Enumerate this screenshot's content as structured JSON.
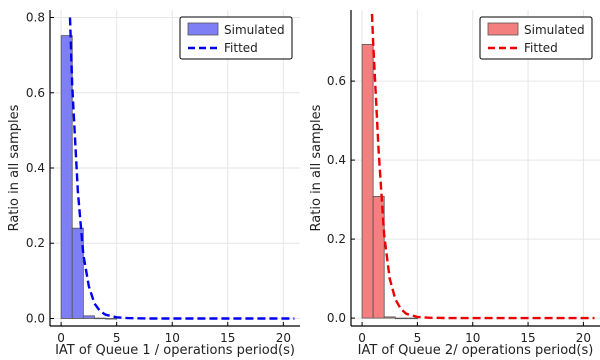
{
  "chart_data": [
    {
      "type": "bar",
      "xlabel": "IAT of Queue 1 / operations period(s)",
      "ylabel": "Ratio in all samples",
      "xlim": [
        -1,
        21.5
      ],
      "ylim": [
        -0.02,
        0.82
      ],
      "x_ticks": [
        0,
        5,
        10,
        15,
        20
      ],
      "y_ticks": [
        0.0,
        0.2,
        0.4,
        0.6,
        0.8
      ],
      "tick_labels_x": [
        "0",
        "5",
        "10",
        "15",
        "20"
      ],
      "tick_labels_y": [
        "0.0",
        "0.2",
        "0.4",
        "0.6",
        "0.8"
      ],
      "grid": true,
      "legend_position": "top-right",
      "bar_color": "#7f7ff5",
      "line_color": "#0000ee",
      "bars": [
        {
          "x0": 0,
          "x1": 1,
          "value": 0.752
        },
        {
          "x0": 1,
          "x1": 2,
          "value": 0.24
        },
        {
          "x0": 2,
          "x1": 3,
          "value": 0.007
        },
        {
          "x0": 3,
          "x1": 4,
          "value": 0.001
        },
        {
          "x0": 4,
          "x1": 5,
          "value": 0.0
        }
      ],
      "series": [
        {
          "name": "Simulated",
          "kind": "bar"
        },
        {
          "name": "Fitted",
          "kind": "line",
          "style": "dashed",
          "x": [
            0.8,
            1.0,
            1.5,
            2.0,
            2.5,
            3.0,
            3.5,
            4.0,
            5.0,
            6.0,
            8.0,
            10.0,
            15.0,
            21.0
          ],
          "y": [
            0.8,
            0.62,
            0.34,
            0.17,
            0.085,
            0.04,
            0.02,
            0.01,
            0.003,
            0.001,
            0.0,
            0.0,
            0.0,
            0.0
          ]
        }
      ]
    },
    {
      "type": "bar",
      "xlabel": "IAT of Queue 2/ operations period(s)",
      "ylabel": "Ratio in all samples",
      "xlim": [
        -1,
        21.5
      ],
      "ylim": [
        -0.02,
        0.78
      ],
      "x_ticks": [
        0,
        5,
        10,
        15,
        20
      ],
      "y_ticks": [
        0.0,
        0.2,
        0.4,
        0.6
      ],
      "tick_labels_x": [
        "0",
        "5",
        "10",
        "15",
        "20"
      ],
      "tick_labels_y": [
        "0.0",
        "0.2",
        "0.4",
        "0.6"
      ],
      "grid": true,
      "legend_position": "top-right",
      "bar_color": "#f47f7f",
      "line_color": "#ee0000",
      "bars": [
        {
          "x0": 0,
          "x1": 1,
          "value": 0.693
        },
        {
          "x0": 1,
          "x1": 2,
          "value": 0.308
        },
        {
          "x0": 2,
          "x1": 3,
          "value": 0.003
        },
        {
          "x0": 3,
          "x1": 4,
          "value": 0.0
        },
        {
          "x0": 4,
          "x1": 5,
          "value": 0.0
        }
      ],
      "series": [
        {
          "name": "Simulated",
          "kind": "bar"
        },
        {
          "name": "Fitted",
          "kind": "line",
          "style": "dashed",
          "x": [
            0.9,
            1.0,
            1.5,
            2.0,
            2.5,
            3.0,
            3.5,
            4.0,
            5.0,
            6.0,
            8.0,
            10.0,
            15.0,
            21.0
          ],
          "y": [
            0.77,
            0.7,
            0.42,
            0.21,
            0.1,
            0.048,
            0.023,
            0.011,
            0.003,
            0.001,
            0.0,
            0.0,
            0.0,
            0.0
          ]
        }
      ]
    }
  ]
}
